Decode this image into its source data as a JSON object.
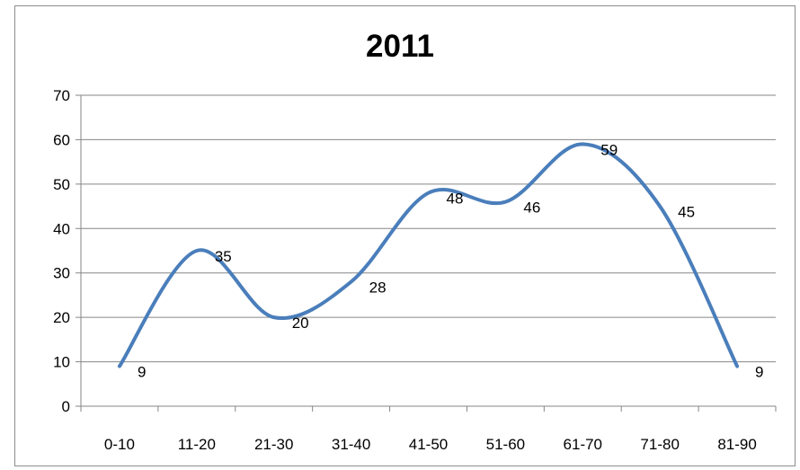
{
  "chart_data": {
    "type": "line",
    "title": "2011",
    "categories": [
      "0-10",
      "11-20",
      "21-30",
      "31-40",
      "41-50",
      "51-60",
      "61-70",
      "71-80",
      "81-90"
    ],
    "series": [
      {
        "values": [
          9,
          35,
          20,
          28,
          48,
          46,
          59,
          45,
          9
        ]
      }
    ],
    "ylim": [
      0,
      70
    ],
    "yticks": [
      0,
      10,
      20,
      30,
      40,
      50,
      60,
      70
    ],
    "grid": true,
    "legend": "none",
    "smooth": true,
    "colors": {
      "line": "#4a7ebb",
      "grid": "#868686",
      "axis": "#868686"
    }
  }
}
